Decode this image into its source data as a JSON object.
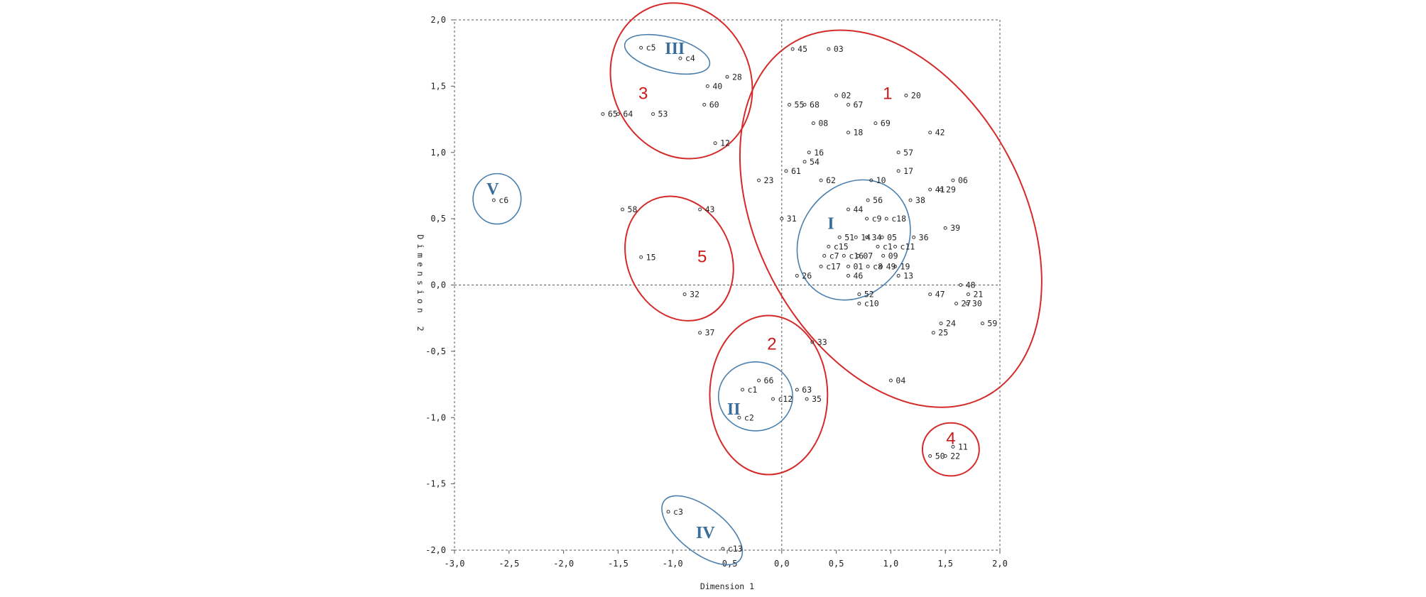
{
  "chart_data": {
    "type": "scatter",
    "xlabel": "Dimension 1",
    "ylabel": "Dimension 2",
    "xlim": [
      -3.0,
      2.0
    ],
    "ylim": [
      -2.0,
      2.0
    ],
    "x_ticks": [
      "-3,0",
      "-2,5",
      "-2,0",
      "-1,5",
      "-1,0",
      "-0,5",
      "0,0",
      "0,5",
      "1,0",
      "1,5",
      "2,0"
    ],
    "y_ticks": [
      "2,0",
      "1,5",
      "1,0",
      "0,5",
      "0,0",
      "-0,5",
      "-1,0",
      "-1,5",
      "-2,0"
    ],
    "grid": "dashed frame with dashed zero reference lines",
    "colors": {
      "red_groups": "#d42a2a",
      "blue_groups": "#4b7fae"
    },
    "points": [
      {
        "label": "45",
        "x": 0.1,
        "y": 1.78
      },
      {
        "label": "03",
        "x": 0.43,
        "y": 1.78
      },
      {
        "label": "02",
        "x": 0.5,
        "y": 1.43
      },
      {
        "label": "20",
        "x": 1.14,
        "y": 1.43
      },
      {
        "label": "55",
        "x": 0.07,
        "y": 1.36
      },
      {
        "label": "68",
        "x": 0.21,
        "y": 1.36
      },
      {
        "label": "67",
        "x": 0.61,
        "y": 1.36
      },
      {
        "label": "08",
        "x": 0.29,
        "y": 1.22
      },
      {
        "label": "69",
        "x": 0.86,
        "y": 1.22
      },
      {
        "label": "18",
        "x": 0.61,
        "y": 1.15
      },
      {
        "label": "42",
        "x": 1.36,
        "y": 1.15
      },
      {
        "label": "16",
        "x": 0.25,
        "y": 1.0
      },
      {
        "label": "57",
        "x": 1.07,
        "y": 1.0
      },
      {
        "label": "54",
        "x": 0.21,
        "y": 0.93
      },
      {
        "label": "61",
        "x": 0.04,
        "y": 0.86
      },
      {
        "label": "17",
        "x": 1.07,
        "y": 0.86
      },
      {
        "label": "23",
        "x": -0.21,
        "y": 0.79
      },
      {
        "label": "62",
        "x": 0.36,
        "y": 0.79
      },
      {
        "label": "10",
        "x": 0.82,
        "y": 0.79
      },
      {
        "label": "06",
        "x": 1.57,
        "y": 0.79
      },
      {
        "label": "41",
        "x": 1.36,
        "y": 0.72
      },
      {
        "label": "29",
        "x": 1.46,
        "y": 0.72
      },
      {
        "label": "56",
        "x": 0.79,
        "y": 0.64
      },
      {
        "label": "38",
        "x": 1.18,
        "y": 0.64
      },
      {
        "label": "44",
        "x": 0.61,
        "y": 0.57
      },
      {
        "label": "c9",
        "x": 0.78,
        "y": 0.5
      },
      {
        "label": "c18",
        "x": 0.96,
        "y": 0.5
      },
      {
        "label": "31",
        "x": 0.0,
        "y": 0.5
      },
      {
        "label": "39",
        "x": 1.5,
        "y": 0.43
      },
      {
        "label": "51",
        "x": 0.53,
        "y": 0.36
      },
      {
        "label": "14",
        "x": 0.68,
        "y": 0.36
      },
      {
        "label": "34",
        "x": 0.78,
        "y": 0.36
      },
      {
        "label": "05",
        "x": 0.92,
        "y": 0.36
      },
      {
        "label": "36",
        "x": 1.21,
        "y": 0.36
      },
      {
        "label": "c15",
        "x": 0.43,
        "y": 0.29
      },
      {
        "label": "c1",
        "x": 0.88,
        "y": 0.29
      },
      {
        "label": "c11",
        "x": 1.04,
        "y": 0.29
      },
      {
        "label": "c7",
        "x": 0.39,
        "y": 0.22
      },
      {
        "label": "c16",
        "x": 0.57,
        "y": 0.22
      },
      {
        "label": "07",
        "x": 0.7,
        "y": 0.22
      },
      {
        "label": "09",
        "x": 0.93,
        "y": 0.22
      },
      {
        "label": "c17",
        "x": 0.36,
        "y": 0.14
      },
      {
        "label": "01",
        "x": 0.61,
        "y": 0.14
      },
      {
        "label": "c8",
        "x": 0.79,
        "y": 0.14
      },
      {
        "label": "49",
        "x": 0.91,
        "y": 0.14
      },
      {
        "label": "19",
        "x": 1.04,
        "y": 0.14
      },
      {
        "label": "26",
        "x": 0.14,
        "y": 0.07
      },
      {
        "label": "46",
        "x": 0.61,
        "y": 0.07
      },
      {
        "label": "13",
        "x": 1.07,
        "y": 0.07
      },
      {
        "label": "48",
        "x": 1.64,
        "y": 0.0
      },
      {
        "label": "52",
        "x": 0.71,
        "y": -0.07
      },
      {
        "label": "47",
        "x": 1.36,
        "y": -0.07
      },
      {
        "label": "21",
        "x": 1.71,
        "y": -0.07
      },
      {
        "label": "c10",
        "x": 0.71,
        "y": -0.14
      },
      {
        "label": "27",
        "x": 1.6,
        "y": -0.14
      },
      {
        "label": "30",
        "x": 1.7,
        "y": -0.14
      },
      {
        "label": "24",
        "x": 1.46,
        "y": -0.29
      },
      {
        "label": "59",
        "x": 1.84,
        "y": -0.29
      },
      {
        "label": "25",
        "x": 1.39,
        "y": -0.36
      },
      {
        "label": "33",
        "x": 0.28,
        "y": -0.43
      },
      {
        "label": "04",
        "x": 1.0,
        "y": -0.72
      },
      {
        "label": "66",
        "x": -0.21,
        "y": -0.72
      },
      {
        "label": "c1",
        "x": -0.36,
        "y": -0.79
      },
      {
        "label": "63",
        "x": 0.14,
        "y": -0.79
      },
      {
        "label": "c12",
        "x": -0.08,
        "y": -0.86
      },
      {
        "label": "35",
        "x": 0.23,
        "y": -0.86
      },
      {
        "label": "c2",
        "x": -0.39,
        "y": -1.0
      },
      {
        "label": "11",
        "x": 1.57,
        "y": -1.22
      },
      {
        "label": "50",
        "x": 1.36,
        "y": -1.29
      },
      {
        "label": "22",
        "x": 1.5,
        "y": -1.29
      },
      {
        "label": "c5",
        "x": -1.29,
        "y": 1.79
      },
      {
        "label": "c4",
        "x": -0.93,
        "y": 1.71
      },
      {
        "label": "28",
        "x": -0.5,
        "y": 1.57
      },
      {
        "label": "40",
        "x": -0.68,
        "y": 1.5
      },
      {
        "label": "60",
        "x": -0.71,
        "y": 1.36
      },
      {
        "label": "65",
        "x": -1.64,
        "y": 1.29
      },
      {
        "label": "64",
        "x": -1.5,
        "y": 1.29
      },
      {
        "label": "53",
        "x": -1.18,
        "y": 1.29
      },
      {
        "label": "12",
        "x": -0.61,
        "y": 1.07
      },
      {
        "label": "c6",
        "x": -2.64,
        "y": 0.64
      },
      {
        "label": "58",
        "x": -1.46,
        "y": 0.57
      },
      {
        "label": "43",
        "x": -0.75,
        "y": 0.57
      },
      {
        "label": "15",
        "x": -1.29,
        "y": 0.21
      },
      {
        "label": "32",
        "x": -0.89,
        "y": -0.07
      },
      {
        "label": "37",
        "x": -0.75,
        "y": -0.36
      },
      {
        "label": "c3",
        "x": -1.04,
        "y": -1.71
      },
      {
        "label": "c13",
        "x": -0.54,
        "y": -1.99
      }
    ],
    "groups": [
      {
        "label": "1",
        "color": "red",
        "cx": 1.0,
        "cy": 0.5,
        "rx": 1.22,
        "ry": 1.52,
        "rotate": -28,
        "lx": 0.97,
        "ly": 1.45
      },
      {
        "label": "2",
        "color": "red",
        "cx": -0.12,
        "cy": -0.83,
        "rx": 0.54,
        "ry": 0.6,
        "rotate": 0,
        "lx": -0.09,
        "ly": -0.44
      },
      {
        "label": "3",
        "color": "red",
        "cx": -0.92,
        "cy": 1.54,
        "rx": 0.73,
        "ry": 0.52,
        "rotate": 65,
        "lx": -1.27,
        "ly": 1.45
      },
      {
        "label": "4",
        "color": "red",
        "cx": 1.55,
        "cy": -1.24,
        "rx": 0.26,
        "ry": 0.2,
        "rotate": 0,
        "lx": 1.55,
        "ly": -1.15
      },
      {
        "label": "5",
        "color": "red",
        "cx": -0.94,
        "cy": 0.2,
        "rx": 0.59,
        "ry": 0.39,
        "rotate": 65,
        "lx": -0.73,
        "ly": 0.22
      },
      {
        "label": "I",
        "color": "blue",
        "cx": 0.66,
        "cy": 0.34,
        "rx": 0.58,
        "ry": 0.4,
        "rotate": -55,
        "lx": 0.45,
        "ly": 0.47
      },
      {
        "label": "II",
        "color": "blue",
        "cx": -0.24,
        "cy": -0.84,
        "rx": 0.34,
        "ry": 0.26,
        "rotate": 0,
        "lx": -0.44,
        "ly": -0.93
      },
      {
        "label": "III",
        "color": "blue",
        "cx": -1.05,
        "cy": 1.74,
        "rx": 0.4,
        "ry": 0.13,
        "rotate": 14,
        "lx": -0.98,
        "ly": 1.79
      },
      {
        "label": "IV",
        "color": "blue",
        "cx": -0.73,
        "cy": -1.85,
        "rx": 0.44,
        "ry": 0.17,
        "rotate": 38,
        "lx": -0.7,
        "ly": -1.86
      },
      {
        "label": "V",
        "color": "blue",
        "cx": -2.61,
        "cy": 0.65,
        "rx": 0.22,
        "ry": 0.19,
        "rotate": 0,
        "lx": -2.65,
        "ly": 0.73
      }
    ]
  }
}
